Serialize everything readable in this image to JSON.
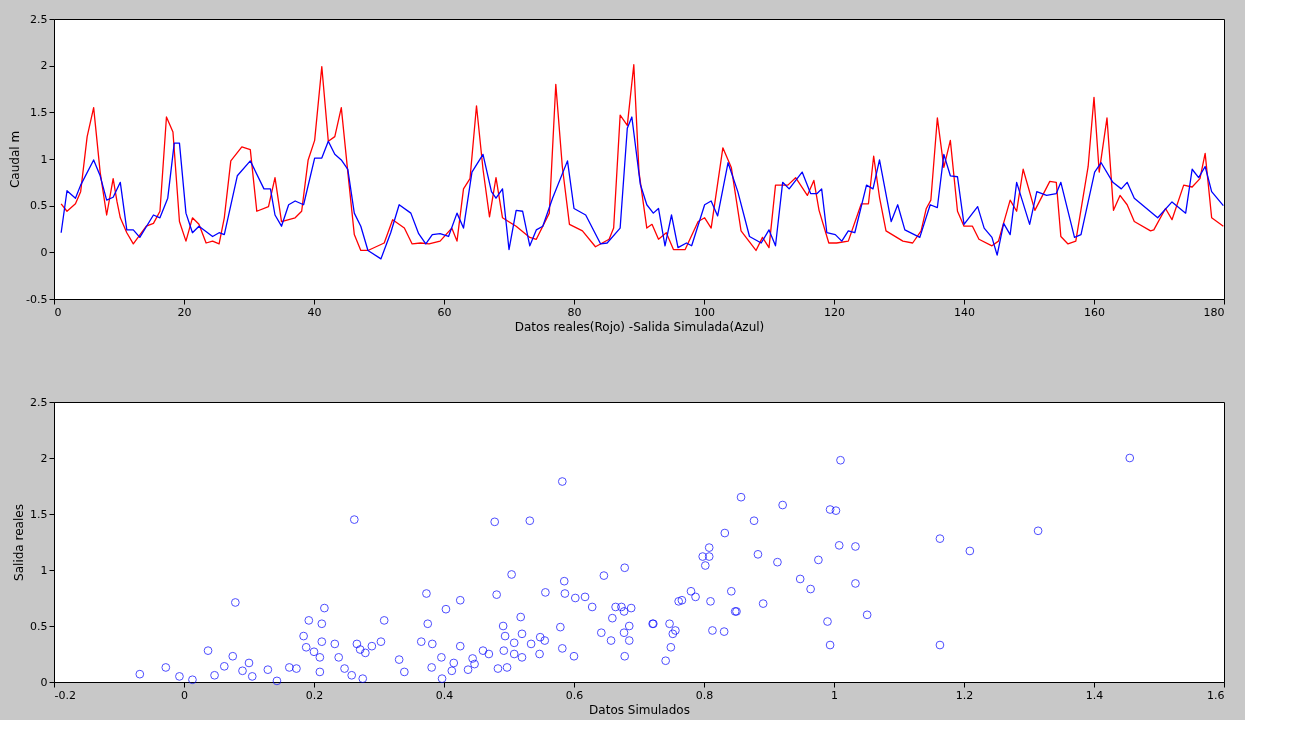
{
  "chart_data": [
    {
      "type": "line",
      "xlabel": "Datos reales(Rojo) -Salida Simulada(Azul)",
      "ylabel": "Caudal m",
      "xlim": [
        0,
        180
      ],
      "xticks": [
        0,
        20,
        40,
        60,
        80,
        100,
        120,
        140,
        160,
        180
      ],
      "ylim": [
        -0.5,
        2.5
      ],
      "yticks": [
        -0.5,
        0,
        0.5,
        1,
        1.5,
        2,
        2.5
      ],
      "grid": false,
      "line_style": "solid",
      "series": [
        {
          "color": "#ff0000",
          "x": [
            1.1,
            2,
            3.3,
            4.1,
            5.1,
            6.1,
            7.1,
            8.1,
            9.1,
            9.7,
            10.2,
            11.2,
            12.2,
            14.2,
            15.3,
            16.3,
            17.3,
            18.3,
            19.3,
            20.3,
            21.3,
            22.3,
            23.4,
            24.4,
            25.4,
            26.2,
            27.2,
            28.9,
            30.2,
            31.2,
            33,
            34,
            35,
            37.1,
            38.1,
            39.1,
            40.1,
            41.2,
            42.2,
            43.2,
            44.2,
            45.2,
            46.2,
            47.2,
            48.3,
            50.8,
            52.1,
            53.9,
            55.1,
            56.4,
            57.7,
            59.4,
            61.2,
            62,
            63,
            64,
            65,
            66,
            67,
            68,
            69,
            71.1,
            73.2,
            74.2,
            76.2,
            77.2,
            78.2,
            79.3,
            81.3,
            83.3,
            85.4,
            86.1,
            87.1,
            88.2,
            89.2,
            90,
            91.2,
            92,
            93,
            94.2,
            95.3,
            97.1,
            99.1,
            100.1,
            101.1,
            102.9,
            104.2,
            105.7,
            108,
            109,
            110,
            111,
            112.9,
            114.1,
            115.9,
            116.9,
            117.7,
            119.2,
            120.4,
            122.2,
            124.2,
            125.3,
            126.1,
            127,
            128,
            130.6,
            132.1,
            133.4,
            134.2,
            134.9,
            135.9,
            136.9,
            137.9,
            139,
            140,
            141.3,
            142.3,
            144.3,
            145.3,
            147.1,
            148.1,
            149.1,
            150.9,
            153.2,
            154.2,
            154.9,
            156,
            157.2,
            159.1,
            160,
            160.8,
            162,
            163,
            164,
            165.1,
            166.2,
            168.7,
            169.2,
            171,
            172,
            173.8,
            175.1,
            176.3,
            177.1,
            178.1,
            179.9
          ],
          "values": [
            0.52,
            0.44,
            0.52,
            0.65,
            1.24,
            1.55,
            0.86,
            0.4,
            0.79,
            0.54,
            0.37,
            0.21,
            0.09,
            0.28,
            0.31,
            0.44,
            1.45,
            1.29,
            0.33,
            0.12,
            0.37,
            0.3,
            0.1,
            0.12,
            0.09,
            0.37,
            0.98,
            1.13,
            1.1,
            0.44,
            0.49,
            0.8,
            0.33,
            0.37,
            0.44,
            0.99,
            1.2,
            1.99,
            1.19,
            1.24,
            1.55,
            0.86,
            0.19,
            0.02,
            0.02,
            0.1,
            0.35,
            0.26,
            0.09,
            0.1,
            0.09,
            0.12,
            0.26,
            0.12,
            0.68,
            0.79,
            1.57,
            0.89,
            0.38,
            0.8,
            0.37,
            0.28,
            0.16,
            0.14,
            0.42,
            1.8,
            0.92,
            0.3,
            0.23,
            0.06,
            0.14,
            0.26,
            1.47,
            1.36,
            2.01,
            0.86,
            0.26,
            0.3,
            0.14,
            0.21,
            0.03,
            0.03,
            0.33,
            0.37,
            0.26,
            1.12,
            0.91,
            0.23,
            0.02,
            0.16,
            0.05,
            0.72,
            0.72,
            0.8,
            0.61,
            0.77,
            0.45,
            0.1,
            0.1,
            0.12,
            0.52,
            0.52,
            1.03,
            0.59,
            0.23,
            0.12,
            0.1,
            0.23,
            0.47,
            0.56,
            1.44,
            0.91,
            1.2,
            0.44,
            0.28,
            0.28,
            0.14,
            0.07,
            0.12,
            0.56,
            0.44,
            0.89,
            0.45,
            0.76,
            0.75,
            0.17,
            0.09,
            0.12,
            0.92,
            1.66,
            0.86,
            1.44,
            0.45,
            0.61,
            0.51,
            0.33,
            0.23,
            0.24,
            0.47,
            0.35,
            0.72,
            0.7,
            0.79,
            1.06,
            0.37,
            0.28
          ]
        },
        {
          "color": "#0000ff",
          "x": [
            1.1,
            2,
            3.3,
            4.1,
            6.1,
            7.1,
            8.1,
            9.1,
            10.2,
            11.2,
            12.2,
            13.2,
            15.3,
            16.3,
            17.5,
            18.5,
            19.3,
            20.3,
            21.3,
            22.3,
            24.4,
            25.4,
            26.2,
            28.2,
            30.2,
            32.3,
            33.3,
            34,
            35,
            36.1,
            37.1,
            38.4,
            40.1,
            41.2,
            42.2,
            43.2,
            44.2,
            45.2,
            46.2,
            47.2,
            48.3,
            50.3,
            51.8,
            53.1,
            54.9,
            56.1,
            57.2,
            58.2,
            59.4,
            60.7,
            62,
            63,
            64.3,
            66,
            67.3,
            68,
            69,
            70,
            71.1,
            72.1,
            73.2,
            74.2,
            75.2,
            76.7,
            79,
            80,
            81.8,
            84.1,
            85.1,
            87.1,
            88.2,
            88.9,
            90.2,
            91.2,
            92.2,
            93,
            94,
            95,
            96,
            97.3,
            98.1,
            100.1,
            101.1,
            102.1,
            103.7,
            105.2,
            107,
            108.8,
            110,
            111,
            112.1,
            113.1,
            115.1,
            116.4,
            117.4,
            118.1,
            118.9,
            120.2,
            121.2,
            122.2,
            123.2,
            125,
            126,
            127,
            128.8,
            129.8,
            130.9,
            133.2,
            134.8,
            135.9,
            136.9,
            137.9,
            139,
            140,
            142.1,
            143.1,
            144.3,
            145.1,
            146.1,
            147.1,
            148.1,
            150.1,
            151.2,
            152.7,
            154.2,
            154.9,
            157,
            158,
            160.1,
            161.1,
            162.9,
            164.2,
            165.1,
            166.2,
            169.8,
            172,
            174.1,
            175.1,
            176.1,
            177.1,
            178.1,
            179.9
          ],
          "values": [
            0.21,
            0.66,
            0.58,
            0.72,
            0.99,
            0.82,
            0.56,
            0.59,
            0.75,
            0.24,
            0.24,
            0.16,
            0.4,
            0.37,
            0.58,
            1.17,
            1.17,
            0.42,
            0.21,
            0.28,
            0.17,
            0.21,
            0.19,
            0.82,
            0.98,
            0.68,
            0.68,
            0.4,
            0.28,
            0.51,
            0.55,
            0.51,
            1.01,
            1.01,
            1.19,
            1.05,
            0.99,
            0.89,
            0.42,
            0.28,
            0.02,
            -0.07,
            0.21,
            0.51,
            0.42,
            0.2,
            0.09,
            0.19,
            0.2,
            0.17,
            0.42,
            0.26,
            0.86,
            1.05,
            0.65,
            0.58,
            0.68,
            0.03,
            0.45,
            0.44,
            0.07,
            0.24,
            0.28,
            0.58,
            0.98,
            0.47,
            0.4,
            0.09,
            0.1,
            0.26,
            1.33,
            1.45,
            0.73,
            0.51,
            0.42,
            0.47,
            0.07,
            0.4,
            0.05,
            0.1,
            0.07,
            0.51,
            0.55,
            0.39,
            0.96,
            0.65,
            0.17,
            0.1,
            0.24,
            0.07,
            0.75,
            0.68,
            0.86,
            0.63,
            0.63,
            0.68,
            0.21,
            0.19,
            0.12,
            0.23,
            0.21,
            0.72,
            0.68,
            0.99,
            0.33,
            0.51,
            0.24,
            0.16,
            0.51,
            0.48,
            1.05,
            0.82,
            0.81,
            0.3,
            0.49,
            0.26,
            0.16,
            -0.03,
            0.31,
            0.19,
            0.75,
            0.3,
            0.65,
            0.61,
            0.63,
            0.75,
            0.16,
            0.19,
            0.86,
            0.96,
            0.75,
            0.68,
            0.75,
            0.58,
            0.37,
            0.54,
            0.42,
            0.89,
            0.8,
            0.92,
            0.65,
            0.5
          ]
        }
      ]
    },
    {
      "type": "scatter",
      "xlabel": "Datos Simulados",
      "ylabel": "Salida reales",
      "xlim": [
        -0.2,
        1.6
      ],
      "xticks": [
        -0.2,
        0,
        0.2,
        0.4,
        0.6,
        0.8,
        1,
        1.2,
        1.4,
        1.6
      ],
      "ylim": [
        0,
        2.5
      ],
      "yticks": [
        0,
        0.5,
        1,
        1.5,
        2,
        2.5
      ],
      "grid": false,
      "marker": "circle",
      "series": [
        {
          "color": "#0000ff",
          "x": [
            -0.068,
            -0.028,
            -0.007,
            0.013,
            0.037,
            0.047,
            0.062,
            0.075,
            0.079,
            0.09,
            0.1,
            0.105,
            0.129,
            0.143,
            0.162,
            0.173,
            0.184,
            0.188,
            0.192,
            0.2,
            0.209,
            0.212,
            0.212,
            0.216,
            0.209,
            0.232,
            0.238,
            0.247,
            0.258,
            0.262,
            0.266,
            0.271,
            0.279,
            0.275,
            0.289,
            0.303,
            0.308,
            0.331,
            0.339,
            0.365,
            0.373,
            0.375,
            0.382,
            0.381,
            0.396,
            0.397,
            0.403,
            0.412,
            0.415,
            0.425,
            0.425,
            0.437,
            0.444,
            0.447,
            0.46,
            0.469,
            0.478,
            0.481,
            0.483,
            0.491,
            0.494,
            0.492,
            0.497,
            0.504,
            0.508,
            0.508,
            0.518,
            0.52,
            0.52,
            0.532,
            0.534,
            0.548,
            0.547,
            0.556,
            0.555,
            0.579,
            0.582,
            0.582,
            0.585,
            0.586,
            0.6,
            0.602,
            0.617,
            0.628,
            0.642,
            0.646,
            0.657,
            0.659,
            0.664,
            0.673,
            0.677,
            0.678,
            0.677,
            0.678,
            0.685,
            0.685,
            0.688,
            0.722,
            0.721,
            0.741,
            0.747,
            0.749,
            0.752,
            0.756,
            0.761,
            0.766,
            0.78,
            0.787,
            0.798,
            0.802,
            0.808,
            0.808,
            0.81,
            0.813,
            0.831,
            0.832,
            0.842,
            0.848,
            0.85,
            0.857,
            0.877,
            0.883,
            0.891,
            0.913,
            0.921,
            0.948,
            0.964,
            0.976,
            0.99,
            0.994,
            0.994,
            1.003,
            1.008,
            1.01,
            1.033,
            1.033,
            1.051,
            1.163,
            1.163,
            1.209,
            1.314,
            1.455
          ],
          "values": [
            0.07,
            0.13,
            0.05,
            0.02,
            0.28,
            0.06,
            0.14,
            0.23,
            0.71,
            0.1,
            0.17,
            0.05,
            0.11,
            0.01,
            0.13,
            0.12,
            0.41,
            0.31,
            0.55,
            0.27,
            0.09,
            0.52,
            0.36,
            0.66,
            0.22,
            0.34,
            0.22,
            0.12,
            0.06,
            1.45,
            0.34,
            0.29,
            0.26,
            0.03,
            0.32,
            0.36,
            0.55,
            0.2,
            0.09,
            0.36,
            0.79,
            0.52,
            0.34,
            0.13,
            0.22,
            0.03,
            0.65,
            0.1,
            0.17,
            0.73,
            0.32,
            0.11,
            0.21,
            0.16,
            0.28,
            0.25,
            1.43,
            0.78,
            0.12,
            0.5,
            0.41,
            0.28,
            0.13,
            0.96,
            0.35,
            0.25,
            0.58,
            0.43,
            0.22,
            1.44,
            0.34,
            0.4,
            0.25,
            0.8,
            0.37,
            0.49,
            1.79,
            0.3,
            0.9,
            0.79,
            0.23,
            0.75,
            0.76,
            0.67,
            0.44,
            0.95,
            0.37,
            0.57,
            0.67,
            0.67,
            0.63,
            1.02,
            0.44,
            0.23,
            0.5,
            0.37,
            0.66,
            0.52,
            0.52,
            0.19,
            0.52,
            0.31,
            0.43,
            0.46,
            0.72,
            0.73,
            0.81,
            0.76,
            1.12,
            1.04,
            1.12,
            1.2,
            0.72,
            0.46,
            0.45,
            1.33,
            0.81,
            0.63,
            0.63,
            1.65,
            1.44,
            1.14,
            0.7,
            1.07,
            1.58,
            0.92,
            0.83,
            1.09,
            0.54,
            1.54,
            0.33,
            1.53,
            1.22,
            1.98,
            1.21,
            0.88,
            0.6,
            1.28,
            0.33,
            1.17,
            1.35,
            2.0
          ]
        }
      ]
    }
  ]
}
